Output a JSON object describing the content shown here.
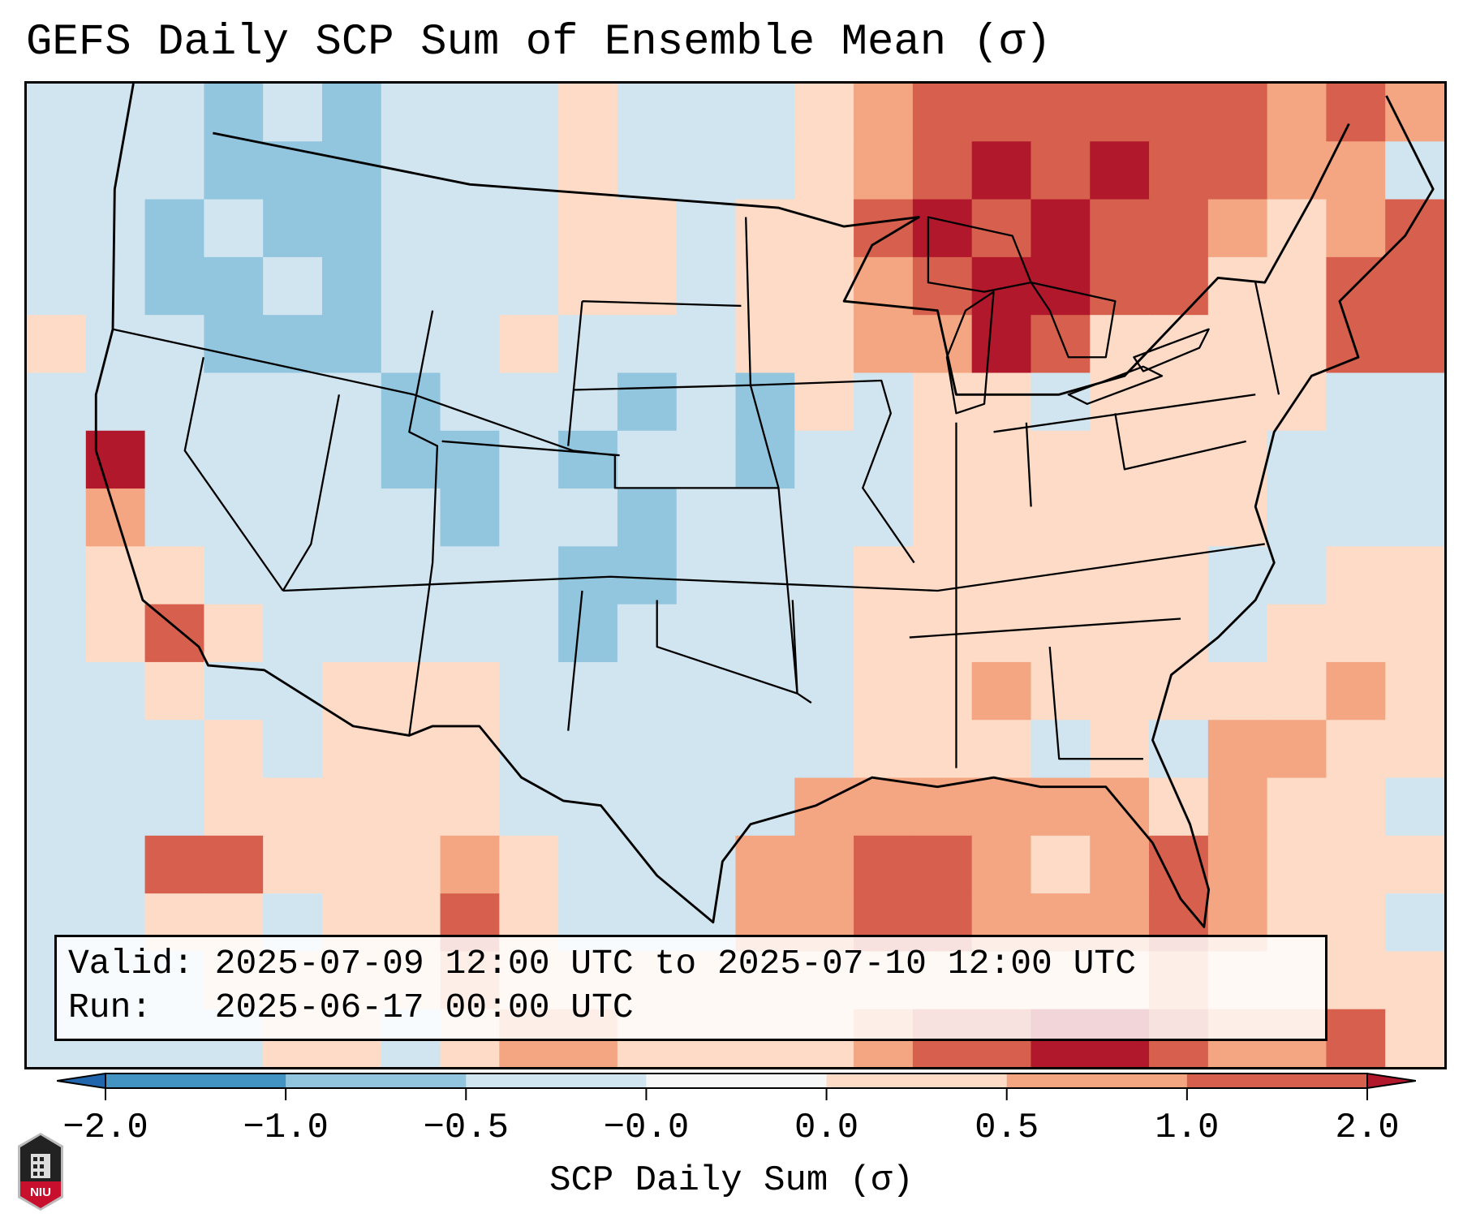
{
  "title": "GEFS Daily SCP Sum of Ensemble Mean (σ)",
  "info": {
    "valid_label": "Valid:",
    "valid_value": "2025-07-09 12:00 UTC to 2025-07-10 12:00 UTC",
    "run_label": "Run:",
    "run_value": "2025-06-17 00:00 UTC"
  },
  "logo_text": "NIU",
  "chart_data": {
    "type": "heatmap",
    "title": "GEFS Daily SCP Sum of Ensemble Mean (σ)",
    "colorbar": {
      "label": "SCP Daily Sum (σ)",
      "ticks": [
        "-2.0",
        "-1.0",
        "-0.5",
        "-0.0",
        "0.0",
        "0.5",
        "1.0",
        "2.0"
      ],
      "colors": [
        "#4393c3",
        "#92c5de",
        "#d1e5f0",
        "#f7f7f7",
        "#fddbc7",
        "#f4a582",
        "#d6604d"
      ],
      "under_color": "#2166ac",
      "over_color": "#b2182b",
      "extend": "both"
    },
    "class_colors": {
      "-2": "#92c5de",
      "-1": "#d1e5f0",
      "0": "#f7f7f7",
      "1": "#fddbc7",
      "2": "#f4a582",
      "3": "#d6604d",
      "4": "#b2182b"
    },
    "grid_note_classes": "-2: -1.0..-0.5, -1: -0.5..0, 1: 0..0.5, 2: 0.5..1.0, 3: 1.0..2.0, 4: >2.0",
    "grid": [
      [
        -1,
        -1,
        -1,
        -2,
        -1,
        -2,
        -1,
        -1,
        -1,
        1,
        -1,
        -1,
        -1,
        1,
        2,
        3,
        3,
        3,
        3,
        3,
        3,
        2,
        3,
        2
      ],
      [
        -1,
        -1,
        -1,
        -2,
        -2,
        -2,
        -1,
        -1,
        -1,
        1,
        -1,
        -1,
        -1,
        1,
        2,
        3,
        4,
        3,
        4,
        3,
        3,
        2,
        2,
        -1
      ],
      [
        -1,
        -1,
        -2,
        -1,
        -2,
        -2,
        -1,
        -1,
        -1,
        1,
        1,
        -1,
        1,
        1,
        3,
        4,
        3,
        4,
        3,
        3,
        2,
        1,
        2,
        3
      ],
      [
        -1,
        -1,
        -2,
        -2,
        -1,
        -2,
        -1,
        -1,
        -1,
        1,
        1,
        -1,
        1,
        1,
        2,
        3,
        4,
        4,
        3,
        3,
        1,
        1,
        3,
        3
      ],
      [
        1,
        -1,
        -1,
        -2,
        -2,
        -2,
        -1,
        -1,
        1,
        -1,
        -1,
        -1,
        1,
        1,
        2,
        2,
        4,
        3,
        1,
        1,
        1,
        1,
        3,
        3
      ],
      [
        -1,
        -1,
        -1,
        -1,
        -1,
        -1,
        -2,
        -1,
        -1,
        -1,
        -2,
        -1,
        -2,
        1,
        -1,
        1,
        1,
        -1,
        1,
        1,
        1,
        1,
        -1,
        -1
      ],
      [
        -1,
        4,
        -1,
        -1,
        -1,
        -1,
        -2,
        -2,
        -1,
        -2,
        -1,
        -1,
        -2,
        -1,
        -1,
        1,
        1,
        1,
        1,
        1,
        1,
        -1,
        -1,
        -1
      ],
      [
        -1,
        2,
        -1,
        -1,
        -1,
        -1,
        -1,
        -2,
        -1,
        -1,
        -2,
        -1,
        -1,
        -1,
        -1,
        1,
        1,
        1,
        1,
        1,
        1,
        -1,
        -1,
        -1
      ],
      [
        -1,
        1,
        1,
        -1,
        -1,
        -1,
        -1,
        -1,
        -1,
        -2,
        -2,
        -1,
        -1,
        -1,
        1,
        1,
        1,
        1,
        1,
        1,
        -1,
        -1,
        1,
        1
      ],
      [
        -1,
        1,
        3,
        1,
        -1,
        -1,
        -1,
        -1,
        -1,
        -2,
        -1,
        -1,
        -1,
        -1,
        1,
        1,
        1,
        1,
        1,
        1,
        -1,
        1,
        1,
        1
      ],
      [
        -1,
        -1,
        1,
        -1,
        -1,
        1,
        1,
        1,
        -1,
        -1,
        -1,
        -1,
        -1,
        -1,
        1,
        1,
        2,
        1,
        1,
        1,
        1,
        1,
        2,
        1
      ],
      [
        -1,
        -1,
        -1,
        1,
        -1,
        1,
        1,
        1,
        -1,
        -1,
        -1,
        -1,
        -1,
        -1,
        1,
        1,
        1,
        -1,
        1,
        -1,
        2,
        2,
        1,
        1
      ],
      [
        -1,
        -1,
        -1,
        1,
        1,
        1,
        1,
        1,
        -1,
        -1,
        -1,
        -1,
        -1,
        2,
        2,
        2,
        2,
        2,
        2,
        1,
        2,
        1,
        1,
        -1
      ],
      [
        -1,
        -1,
        3,
        3,
        1,
        1,
        1,
        2,
        1,
        -1,
        -1,
        -1,
        2,
        2,
        3,
        3,
        2,
        1,
        2,
        3,
        2,
        1,
        1,
        1
      ],
      [
        -1,
        -1,
        1,
        1,
        -1,
        1,
        1,
        3,
        1,
        -1,
        -1,
        -1,
        2,
        2,
        3,
        3,
        2,
        2,
        2,
        3,
        2,
        1,
        1,
        -1
      ],
      [
        -1,
        -1,
        -1,
        1,
        1,
        1,
        1,
        2,
        1,
        1,
        1,
        1,
        1,
        1,
        1,
        1,
        1,
        1,
        1,
        2,
        1,
        1,
        1,
        1
      ],
      [
        -1,
        -1,
        -1,
        -1,
        1,
        1,
        -1,
        1,
        2,
        2,
        1,
        1,
        1,
        1,
        2,
        3,
        3,
        4,
        4,
        3,
        2,
        2,
        3,
        1
      ]
    ]
  }
}
